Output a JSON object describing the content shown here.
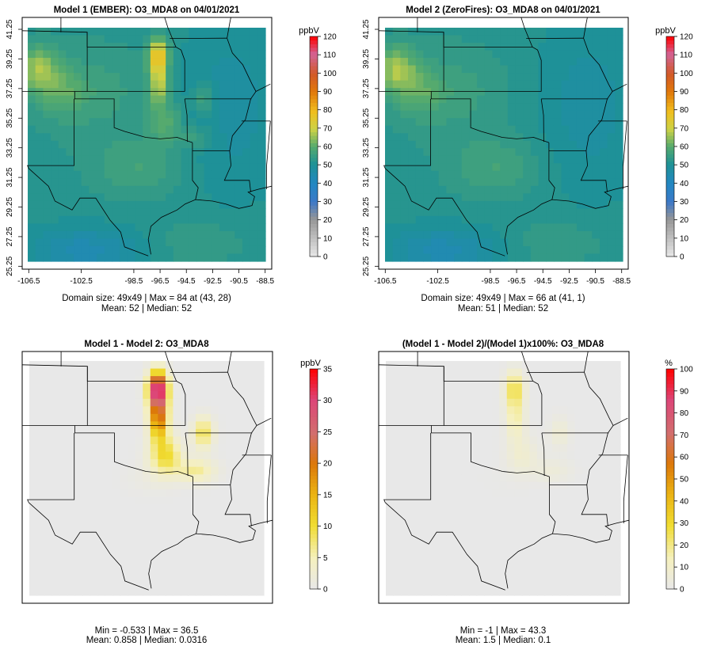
{
  "chart_data": [
    {
      "type": "heatmap",
      "title": "Model 1 (EMBER): O3_MDA8 on 04/01/2021",
      "x_ticks": [
        "-106.5",
        "-102.5",
        "-98.5",
        "-96.5",
        "-94.5",
        "-92.5",
        "-90.5",
        "-88.5"
      ],
      "y_ticks": [
        "25.25",
        "27.25",
        "29.25",
        "31.25",
        "33.25",
        "35.25",
        "37.25",
        "39.25",
        "41.25"
      ],
      "colorbar": {
        "unit": "ppbV",
        "ticks": [
          "0",
          "10",
          "20",
          "30",
          "40",
          "50",
          "60",
          "70",
          "80",
          "90",
          "100",
          "110",
          "120"
        ],
        "min": 0,
        "max": 120,
        "scheme": "ozone"
      },
      "stats": [
        "Domain size: 49x49 | Max = 84 at (43, 28)",
        "Mean: 52 |  Median: 52"
      ],
      "field": "model1",
      "grid": "49x49",
      "max": 84,
      "mean": 52,
      "median": 52
    },
    {
      "type": "heatmap",
      "title": "Model 2 (ZeroFires): O3_MDA8 on 04/01/2021",
      "x_ticks": [
        "-106.5",
        "-102.5",
        "-98.5",
        "-96.5",
        "-94.5",
        "-92.5",
        "-90.5",
        "-88.5"
      ],
      "y_ticks": [
        "25.25",
        "27.25",
        "29.25",
        "31.25",
        "33.25",
        "35.25",
        "37.25",
        "39.25",
        "41.25"
      ],
      "colorbar": {
        "unit": "ppbV",
        "ticks": [
          "0",
          "10",
          "20",
          "30",
          "40",
          "50",
          "60",
          "70",
          "80",
          "90",
          "100",
          "110",
          "120"
        ],
        "min": 0,
        "max": 120,
        "scheme": "ozone"
      },
      "stats": [
        "Domain size: 49x49 | Max = 66 at (41, 1)",
        "Mean: 51 |  Median: 52"
      ],
      "field": "model2",
      "grid": "49x49",
      "max": 66,
      "mean": 51,
      "median": 52
    },
    {
      "type": "heatmap",
      "title": "Model 1 - Model 2: O3_MDA8",
      "x_ticks": [],
      "y_ticks": [],
      "colorbar": {
        "unit": "ppbV",
        "ticks": [
          "0",
          "5",
          "10",
          "15",
          "20",
          "25",
          "30",
          "35"
        ],
        "min": 0,
        "max": 35,
        "scheme": "diff"
      },
      "stats": [
        "Min = -0.533 | Max = 36.5",
        "Mean: 0.858 |  Median: 0.0316"
      ],
      "field": "diff",
      "min": -0.533,
      "max": 36.5,
      "mean": 0.858,
      "median": 0.0316
    },
    {
      "type": "heatmap",
      "title": "(Model 1 - Model 2)/(Model 1)x100%: O3_MDA8",
      "x_ticks": [],
      "y_ticks": [],
      "colorbar": {
        "unit": "%",
        "ticks": [
          "0",
          "10",
          "20",
          "30",
          "40",
          "50",
          "60",
          "70",
          "80",
          "90",
          "100"
        ],
        "min": 0,
        "max": 100,
        "scheme": "diff"
      },
      "stats": [
        "Min = -1 | Max = 43.3",
        "Mean: 1.5 |  Median: 0.1"
      ],
      "field": "pct",
      "min": -1,
      "max": 43.3,
      "mean": 1.5,
      "median": 0.1
    }
  ]
}
